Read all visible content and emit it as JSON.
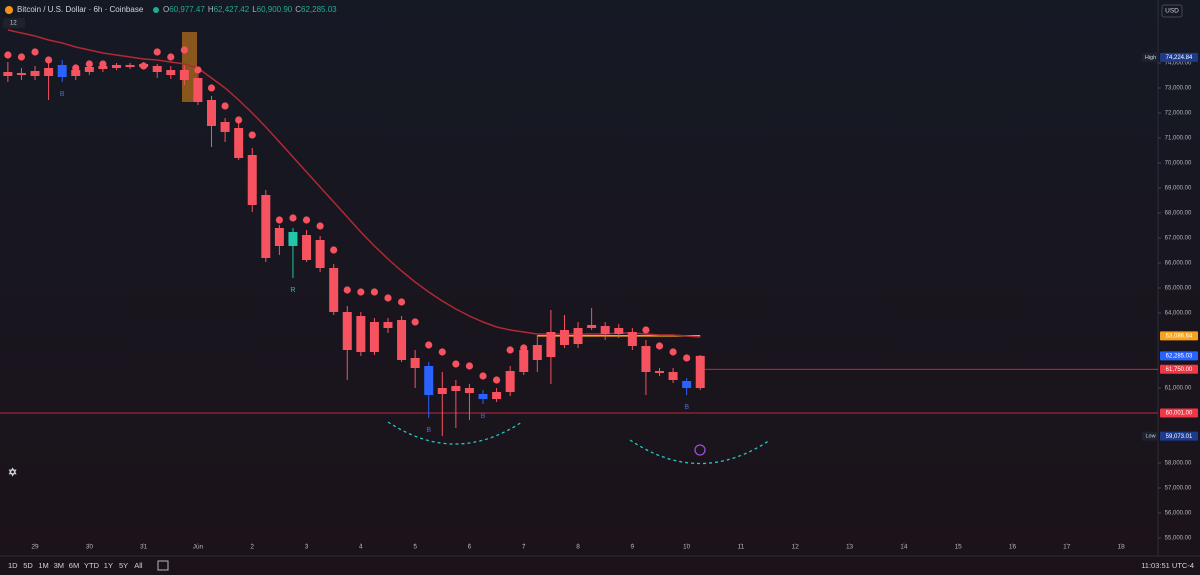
{
  "header": {
    "symbol": "Bitcoin / U.S. Dollar · 6h · Coinbase",
    "ohlc": [
      {
        "label": "O",
        "value": "60,977.47"
      },
      {
        "label": "H",
        "value": "62,427.42"
      },
      {
        "label": "L",
        "value": "60,900.90"
      },
      {
        "label": "C",
        "value": "62,285.03"
      }
    ],
    "badge": "12",
    "currency": "USD"
  },
  "toolbar": {
    "ranges": [
      "1D",
      "5D",
      "1M",
      "3M",
      "6M",
      "YTD",
      "1Y",
      "5Y",
      "All"
    ],
    "clock": "11:03:51 UTC-4"
  },
  "chart_data": {
    "type": "candlestick",
    "x": [
      -0.5,
      -0.25,
      0,
      0.25,
      0.5,
      0.75,
      1,
      1.25,
      1.5,
      1.75,
      2,
      2.25,
      2.5,
      2.75,
      3,
      3.25,
      3.5,
      3.75,
      4,
      4.25,
      4.5,
      4.75,
      5,
      5.25,
      5.5,
      5.75,
      6,
      6.25,
      6.5,
      6.75,
      7,
      7.25,
      7.5,
      7.75,
      8,
      8.25,
      8.5,
      8.75,
      9,
      9.25,
      9.5,
      9.75,
      10,
      10.25,
      10.5,
      10.75,
      11,
      11.25,
      11.5,
      11.75,
      12,
      12.25
    ],
    "open": [
      73640,
      73600,
      73680,
      73800,
      73440,
      73720,
      73840,
      73880,
      73920,
      73920,
      73960,
      73880,
      73720,
      73720,
      73400,
      72520,
      71640,
      71400,
      70320,
      68720,
      67400,
      66680,
      67120,
      66920,
      65800,
      64040,
      63880,
      63640,
      63640,
      63720,
      62200,
      60720,
      61000,
      61080,
      61000,
      60560,
      60840,
      61680,
      62520,
      62720,
      63240,
      63320,
      63400,
      63520,
      63480,
      63400,
      63240,
      62680,
      61680,
      61640,
      61000,
      61000
    ],
    "high": [
      74040,
      73800,
      73880,
      74040,
      74120,
      73880,
      74000,
      73960,
      74000,
      74000,
      74040,
      73960,
      73880,
      73920,
      73640,
      72680,
      71800,
      71800,
      70600,
      68920,
      67520,
      67400,
      67320,
      67080,
      65960,
      64280,
      64040,
      63800,
      63800,
      63880,
      62520,
      62040,
      61640,
      61320,
      61160,
      60920,
      61000,
      61880,
      62720,
      63120,
      64120,
      63920,
      63640,
      64200,
      63640,
      63560,
      63400,
      62920,
      61800,
      61800,
      61400,
      62320
    ],
    "low": [
      73240,
      73320,
      73320,
      72520,
      73240,
      73320,
      73520,
      73640,
      73720,
      73760,
      73760,
      73400,
      73360,
      73120,
      72320,
      70640,
      70840,
      70120,
      68040,
      66040,
      66320,
      65400,
      66040,
      65640,
      63920,
      61320,
      62280,
      62320,
      63200,
      62040,
      61000,
      59800,
      59073.01,
      59400,
      59720,
      60360,
      60440,
      60680,
      61520,
      61640,
      61160,
      62600,
      62600,
      63320,
      62920,
      63000,
      62520,
      60720,
      61480,
      61200,
      60720,
      60920
    ],
    "close": [
      73480,
      73520,
      73480,
      73480,
      73920,
      73480,
      73640,
      73760,
      73800,
      73840,
      73840,
      73640,
      73520,
      73320,
      72440,
      71480,
      71240,
      70200,
      68320,
      66200,
      66680,
      67240,
      66120,
      65800,
      64040,
      62520,
      62440,
      62440,
      63400,
      62120,
      61800,
      61880,
      60760,
      60880,
      60800,
      60760,
      60560,
      60840,
      61640,
      62120,
      62240,
      62720,
      62760,
      63400,
      63160,
      63160,
      62680,
      61640,
      61600,
      61320,
      61280,
      62285.03
    ],
    "color": "#f7525f",
    "highlights": [
      {
        "x": 0.5,
        "color": "#2962ff"
      },
      {
        "x": 4.75,
        "color": "#22c7a9"
      },
      {
        "x": 7.25,
        "color": "#2962ff"
      },
      {
        "x": 8.25,
        "color": "#2962ff"
      },
      {
        "x": 12,
        "color": "#2962ff"
      }
    ],
    "dots": {
      "color": "#f7525f",
      "values": [
        74320,
        74240,
        74440,
        74120,
        null,
        73800,
        73960,
        73960,
        null,
        null,
        73880,
        74440,
        74240,
        74520,
        73720,
        73000,
        72280,
        71720,
        71120,
        null,
        67720,
        67800,
        67720,
        67480,
        66520,
        64920,
        64840,
        64840,
        64600,
        64440,
        63640,
        62720,
        62440,
        61960,
        61880,
        61480,
        61320,
        62520,
        62600,
        null,
        null,
        null,
        null,
        null,
        null,
        null,
        null,
        63320,
        62680,
        62440,
        62200,
        null
      ]
    },
    "average": {
      "color": "#b22833",
      "values": [
        75320,
        75200,
        75080,
        74920,
        74800,
        74640,
        74520,
        74400,
        74320,
        74240,
        74160,
        74120,
        74040,
        73960,
        73800,
        73400,
        73000,
        72520,
        72000,
        71440,
        70840,
        70240,
        69640,
        69040,
        68440,
        67840,
        67240,
        66680,
        66160,
        65680,
        65240,
        64840,
        64480,
        64160,
        63880,
        63640,
        63440,
        63320,
        63240,
        63160,
        63160,
        63160,
        63160,
        63160,
        63160,
        63200,
        63200,
        63160,
        63120,
        63120,
        63080,
        63040
      ]
    },
    "signals": [
      {
        "x": 0.5,
        "label": "B",
        "color": "#3f6fd6"
      },
      {
        "x": 4.75,
        "label": "R",
        "color": "#22c7a9"
      },
      {
        "x": 7.25,
        "label": "B",
        "color": "#3f6fd6"
      },
      {
        "x": 8.25,
        "label": "B",
        "color": "#3f6fd6"
      },
      {
        "x": 12,
        "label": "B",
        "color": "#3f6fd6"
      }
    ],
    "levels": [
      {
        "value": 63086.64,
        "color": "#f7a21b",
        "from": 9.25,
        "to": 12.25
      },
      {
        "value": 61750,
        "color": "#f23645",
        "from": 12.25
      },
      {
        "value": 60001,
        "color": "#f23645"
      }
    ],
    "price_tags": [
      {
        "value": 74224.84,
        "label": "74,224.84",
        "caption": "High",
        "color": "#1e3a8a"
      },
      {
        "value": 63086.64,
        "label": "63,086.64",
        "color": "#f7a21b"
      },
      {
        "value": 62285.03,
        "label": "62,285.03",
        "color": "#2962ff"
      },
      {
        "value": 61750,
        "label": "61,750.00",
        "color": "#f23645"
      },
      {
        "value": 60001,
        "label": "60,001.00",
        "color": "#f23645"
      },
      {
        "value": 59073.01,
        "label": "59,073.01",
        "caption": "Low",
        "color": "#1e3a8a"
      }
    ],
    "xlim": [
      -0.645,
      20.68
    ],
    "xticks": [
      {
        "value": 0,
        "label": "29"
      },
      {
        "value": 1,
        "label": "30"
      },
      {
        "value": 2,
        "label": "31"
      },
      {
        "value": 3,
        "label": "Jun"
      },
      {
        "value": 4,
        "label": "2"
      },
      {
        "value": 5,
        "label": "3"
      },
      {
        "value": 6,
        "label": "4"
      },
      {
        "value": 7,
        "label": "5"
      },
      {
        "value": 8,
        "label": "6"
      },
      {
        "value": 9,
        "label": "7"
      },
      {
        "value": 10,
        "label": "8"
      },
      {
        "value": 11,
        "label": "9"
      },
      {
        "value": 12,
        "label": "10"
      },
      {
        "value": 13,
        "label": "11"
      },
      {
        "value": 14,
        "label": "12"
      },
      {
        "value": 15,
        "label": "13"
      },
      {
        "value": 16,
        "label": "14"
      },
      {
        "value": 17,
        "label": "15"
      },
      {
        "value": 18,
        "label": "16"
      },
      {
        "value": 19,
        "label": "17"
      },
      {
        "value": 20,
        "label": "18"
      }
    ],
    "ylim": [
      54320,
      75800
    ],
    "yticks": [
      {
        "value": 74000,
        "label": "74,000.00"
      },
      {
        "value": 73000,
        "label": "73,000.00"
      },
      {
        "value": 72000,
        "label": "72,000.00"
      },
      {
        "value": 71000,
        "label": "71,000.00"
      },
      {
        "value": 70000,
        "label": "70,000.00"
      },
      {
        "value": 69000,
        "label": "69,000.00"
      },
      {
        "value": 68000,
        "label": "68,000.00"
      },
      {
        "value": 67000,
        "label": "67,000.00"
      },
      {
        "value": 66000,
        "label": "66,000.00"
      },
      {
        "value": 65000,
        "label": "65,000.00"
      },
      {
        "value": 64000,
        "label": "64,000.00"
      },
      {
        "value": 61000,
        "label": "61,000.00"
      },
      {
        "value": 58000,
        "label": "58,000.00"
      },
      {
        "value": 57000,
        "label": "57,000.00"
      },
      {
        "value": 56000,
        "label": "56,000.00"
      },
      {
        "value": 55000,
        "label": "55,000.00"
      }
    ],
    "grid": false
  }
}
